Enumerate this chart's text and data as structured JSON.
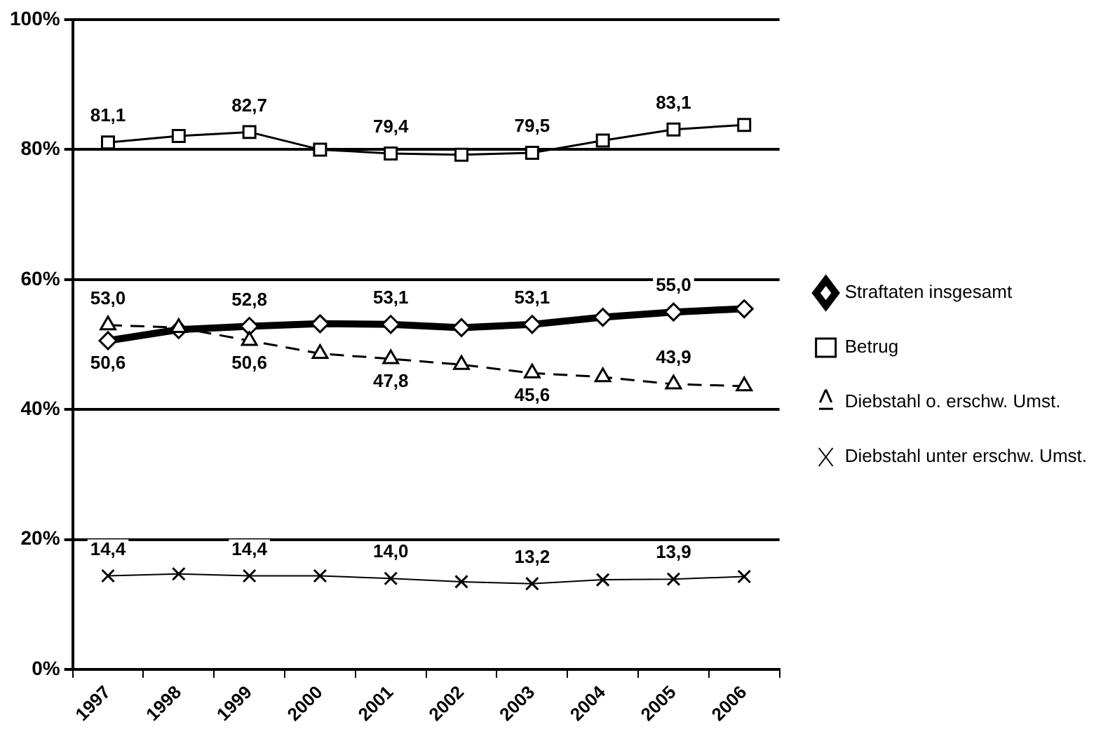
{
  "chart_data": {
    "type": "line",
    "categories": [
      "1997",
      "1998",
      "1999",
      "2000",
      "2001",
      "2002",
      "2003",
      "2004",
      "2005",
      "2006"
    ],
    "series": [
      {
        "name": "Straftaten insgesamt",
        "color": "#000000",
        "marker": "diamond",
        "line_style": "solid",
        "values": [
          50.6,
          52.3,
          52.8,
          53.2,
          53.1,
          52.6,
          53.1,
          54.2,
          55.0,
          55.5
        ],
        "value_labels": [
          "50,6",
          null,
          "52,8",
          null,
          "53,1",
          null,
          "53,1",
          null,
          "55,0",
          null
        ]
      },
      {
        "name": "Betrug",
        "color": "#000000",
        "marker": "square",
        "line_style": "solid",
        "values": [
          81.1,
          82.1,
          82.7,
          80.0,
          79.4,
          79.2,
          79.5,
          81.4,
          83.1,
          83.8
        ],
        "value_labels": [
          "81,1",
          null,
          "82,7",
          null,
          "79,4",
          null,
          "79,5",
          null,
          "83,1",
          null
        ]
      },
      {
        "name": "Diebstahl o. erschw. Umst.",
        "color": "#000000",
        "marker": "triangle",
        "line_style": "dashed",
        "values": [
          53.0,
          52.6,
          50.6,
          48.6,
          47.8,
          46.9,
          45.6,
          45.0,
          43.9,
          43.6
        ],
        "value_labels": [
          "53,0",
          null,
          "50,6",
          null,
          "47,8",
          null,
          "45,6",
          null,
          "43,9",
          null
        ]
      },
      {
        "name": "Diebstahl unter erschw. Umst.",
        "color": "#000000",
        "marker": "cross",
        "line_style": "solid",
        "values": [
          14.4,
          14.7,
          14.4,
          14.4,
          14.0,
          13.5,
          13.2,
          13.8,
          13.9,
          14.3
        ],
        "value_labels": [
          "14,4",
          null,
          "14,4",
          null,
          "14,0",
          null,
          "13,2",
          null,
          "13,9",
          null
        ]
      }
    ],
    "ylim": [
      0,
      100
    ],
    "yticks": [
      {
        "value": 0,
        "label": "0%"
      },
      {
        "value": 20,
        "label": "20%"
      },
      {
        "value": 40,
        "label": "40%"
      },
      {
        "value": 60,
        "label": "60%"
      },
      {
        "value": 80,
        "label": "80%"
      },
      {
        "value": 100,
        "label": "100%"
      }
    ],
    "grid": "y",
    "legend": "right"
  }
}
